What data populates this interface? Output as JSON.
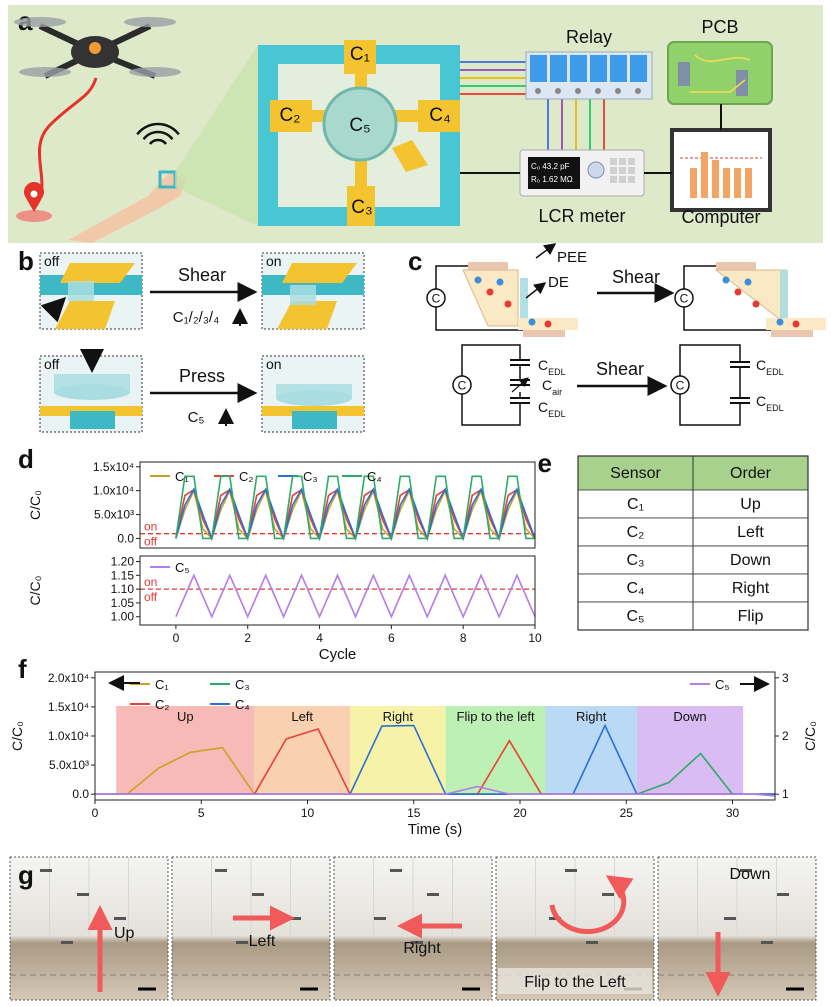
{
  "panel_a": {
    "label": "a",
    "relay": "Relay",
    "pcb": "PCB",
    "lcr": "LCR meter",
    "computer": "Computer",
    "pads": [
      "C₁",
      "C₂",
      "C₃",
      "C₄",
      "C₅"
    ],
    "display": [
      "C₀  43.2 pF",
      "R₀  1.62 MΩ"
    ]
  },
  "panel_b": {
    "label": "b",
    "shear": {
      "before": "off",
      "action": "Shear",
      "after": "on",
      "target": "C₁/₂/₃/₄"
    },
    "press": {
      "before": "off",
      "action": "Press",
      "after": "on",
      "target": "C₅"
    }
  },
  "panel_c": {
    "label": "c",
    "pee": "PEE",
    "de": "DE",
    "action": "Shear",
    "source": "C",
    "edl": {
      "main": "C",
      "sub": "EDL"
    },
    "air": {
      "main": "C",
      "sub": "air"
    }
  },
  "table": {
    "label": "e",
    "header": [
      "Sensor",
      "Order"
    ],
    "rows": [
      [
        "C₁",
        "Up"
      ],
      [
        "C₂",
        "Left"
      ],
      [
        "C₃",
        "Down"
      ],
      [
        "C₄",
        "Right"
      ],
      [
        "C₅",
        "Flip"
      ]
    ]
  },
  "panel_g": {
    "label": "g",
    "frames": [
      "Up",
      "Left",
      "Right",
      "Flip to the Left",
      "Down"
    ]
  },
  "chart_data": [
    {
      "type": "line",
      "label": "d",
      "ylabel": "C/C₀",
      "x": [
        0,
        0.25,
        0.5,
        0.75,
        1,
        1.25,
        1.5,
        1.75,
        2,
        2.25,
        2.5,
        2.75,
        3,
        3.25,
        3.5,
        3.75,
        4,
        4.25,
        4.5,
        4.75,
        5,
        5.25,
        5.5,
        5.75,
        6,
        6.25,
        6.5,
        6.75,
        7,
        7.25,
        7.5,
        7.75,
        8,
        8.25,
        8.5,
        8.75,
        9,
        9.25,
        9.5,
        9.75,
        10
      ],
      "xlim": [
        -1,
        10
      ],
      "ylim": [
        -2000,
        16000
      ],
      "yticks": [
        {
          "value": 0,
          "label": "0.0"
        },
        {
          "value": 5000,
          "label": "5.0x10³"
        },
        {
          "value": 10000,
          "label": "1.0x10⁴"
        },
        {
          "value": 15000,
          "label": "1.5x10⁴"
        }
      ],
      "threshold": 1000,
      "threshold_color": "#e53935",
      "threshold_labels": [
        "on",
        "off"
      ],
      "series": [
        {
          "name": "C₁",
          "color": "#c9a227",
          "values": [
            0,
            6000,
            10000,
            2000,
            0,
            6000,
            10000,
            2000,
            0,
            6000,
            10000,
            2000,
            0,
            6000,
            10000,
            2000,
            0,
            6000,
            10000,
            2000,
            0,
            6000,
            10000,
            2000,
            0,
            6000,
            10000,
            2000,
            0,
            6000,
            10000,
            2000,
            0,
            6000,
            10000,
            2000,
            0,
            6000,
            10000,
            2000,
            0
          ]
        },
        {
          "name": "C₂",
          "color": "#e8403a",
          "values": [
            0,
            9000,
            10200,
            4000,
            0,
            9000,
            10200,
            4000,
            0,
            9000,
            10200,
            4000,
            0,
            9000,
            10200,
            4000,
            0,
            9000,
            10200,
            4000,
            0,
            9000,
            10200,
            4000,
            0,
            9000,
            10200,
            4000,
            0,
            9000,
            10200,
            4000,
            0,
            9000,
            10200,
            4000,
            0,
            9000,
            10200,
            4000,
            0
          ]
        },
        {
          "name": "C₃",
          "color": "#2b6fd6",
          "values": [
            0,
            7000,
            10300,
            5000,
            0,
            7000,
            10300,
            5000,
            0,
            7000,
            10300,
            5000,
            0,
            7000,
            10300,
            5000,
            0,
            7000,
            10300,
            5000,
            0,
            7000,
            10300,
            5000,
            0,
            7000,
            10300,
            5000,
            0,
            7000,
            10300,
            5000,
            0,
            7000,
            10300,
            5000,
            0,
            7000,
            10300,
            5000,
            0
          ]
        },
        {
          "name": "C₄",
          "color": "#2eaa6a",
          "values": [
            0,
            13000,
            13000,
            0,
            0,
            13000,
            13000,
            0,
            0,
            13000,
            13000,
            0,
            0,
            13000,
            13000,
            0,
            0,
            13000,
            13000,
            0,
            0,
            13000,
            13000,
            0,
            0,
            13000,
            13000,
            0,
            0,
            13000,
            13000,
            0,
            0,
            13000,
            13000,
            0,
            0,
            13000,
            13000,
            0,
            0
          ]
        }
      ]
    },
    {
      "type": "line",
      "ylabel": "C/C₀",
      "xlabel": "Cycle",
      "x": [
        0,
        0.25,
        0.5,
        0.75,
        1,
        1.25,
        1.5,
        1.75,
        2,
        2.25,
        2.5,
        2.75,
        3,
        3.25,
        3.5,
        3.75,
        4,
        4.25,
        4.5,
        4.75,
        5,
        5.25,
        5.5,
        5.75,
        6,
        6.25,
        6.5,
        6.75,
        7,
        7.25,
        7.5,
        7.75,
        8,
        8.25,
        8.5,
        8.75,
        9,
        9.25,
        9.5,
        9.75,
        10
      ],
      "xlim": [
        -1,
        10
      ],
      "xticks": [
        0,
        2,
        4,
        6,
        8,
        10
      ],
      "ylim": [
        0.97,
        1.22
      ],
      "yticks": [
        {
          "value": 1,
          "label": "1.00"
        },
        1.05,
        {
          "value": 1.1,
          "label": "1.10"
        },
        1.15,
        {
          "value": 1.2,
          "label": "1.20"
        }
      ],
      "threshold": 1.1,
      "threshold_color": "#e53935",
      "threshold_labels": [
        "on",
        "off"
      ],
      "series": [
        {
          "name": "C₅",
          "color": "#b57de6",
          "values": [
            1,
            1.075,
            1.15,
            1.075,
            1,
            1.075,
            1.15,
            1.075,
            1,
            1.075,
            1.15,
            1.075,
            1,
            1.075,
            1.15,
            1.075,
            1,
            1.075,
            1.15,
            1.075,
            1,
            1.075,
            1.15,
            1.075,
            1,
            1.075,
            1.15,
            1.075,
            1,
            1.075,
            1.15,
            1.075,
            1,
            1.075,
            1.15,
            1.075,
            1,
            1.075,
            1.15,
            1.075,
            1
          ]
        }
      ]
    },
    {
      "type": "line",
      "label": "f",
      "xlabel": "Time (s)",
      "ylabel": "C/C₀",
      "y2label": "C/C₀",
      "xlim": [
        0,
        32
      ],
      "xticks": [
        0,
        5,
        10,
        15,
        20,
        25,
        30
      ],
      "ylim": [
        -1000,
        21000
      ],
      "yticks": [
        {
          "value": 0,
          "label": "0.0"
        },
        {
          "value": 5000,
          "label": "5.0x10³"
        },
        {
          "value": 10000,
          "label": "1.0x10⁴"
        },
        {
          "value": 15000,
          "label": "1.5x10⁴"
        },
        {
          "value": 20000,
          "label": "2.0x10⁴"
        }
      ],
      "y2lim": [
        0.9,
        3.1
      ],
      "y2ticks": [
        1,
        2,
        3
      ],
      "regions": [
        {
          "name": "Up",
          "from": 1,
          "to": 7.5,
          "color": "#f7bab6"
        },
        {
          "name": "Left",
          "from": 7.5,
          "to": 12,
          "color": "#f9d0b0"
        },
        {
          "name": "Right",
          "from": 12,
          "to": 16.5,
          "color": "#f6f2a8"
        },
        {
          "name": "Flip to the left",
          "from": 16.5,
          "to": 21.2,
          "color": "#bdf0b4"
        },
        {
          "name": "Right",
          "from": 21.2,
          "to": 25.5,
          "color": "#b9d9f5"
        },
        {
          "name": "Down",
          "from": 25.5,
          "to": 30.5,
          "color": "#d9bcf2"
        }
      ],
      "series": [
        {
          "name": "C₁",
          "color": "#c9a227",
          "x": [
            0,
            1.5,
            3,
            4.5,
            6,
            7.5,
            32
          ],
          "values": [
            0,
            0,
            4500,
            7200,
            8000,
            0,
            0
          ]
        },
        {
          "name": "C₂",
          "color": "#e8403a",
          "x": [
            0,
            7.5,
            9,
            10.5,
            12,
            18,
            19.5,
            21,
            32
          ],
          "values": [
            0,
            0,
            9500,
            11200,
            0,
            0,
            9200,
            0,
            0
          ]
        },
        {
          "name": "C₃",
          "color": "#2eaa6a",
          "x": [
            0,
            25.5,
            27,
            28.5,
            30,
            32
          ],
          "values": [
            0,
            0,
            2000,
            7000,
            0,
            0
          ]
        },
        {
          "name": "C₄",
          "color": "#2b6fd6",
          "x": [
            0,
            12,
            13.5,
            15,
            16.5,
            22.5,
            24,
            25.5,
            32
          ],
          "values": [
            0,
            0,
            11700,
            11800,
            0,
            0,
            11800,
            0,
            0
          ]
        },
        {
          "name": "C₅",
          "color": "#b57de6",
          "axis": "y2",
          "x": [
            0,
            16.5,
            18,
            19.5,
            31,
            32
          ],
          "values": [
            1,
            1,
            1.13,
            1,
            1,
            0.97
          ]
        }
      ]
    }
  ]
}
